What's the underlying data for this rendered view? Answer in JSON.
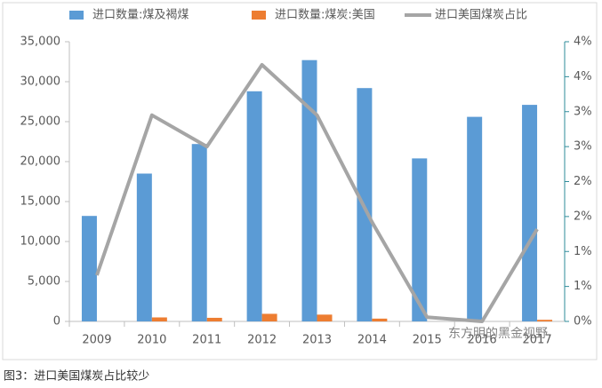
{
  "chart_data": {
    "type": "bar",
    "categories": [
      "2009",
      "2010",
      "2011",
      "2012",
      "2013",
      "2014",
      "2015",
      "2016",
      "2017"
    ],
    "series": [
      {
        "name": "进口数量:煤及褐煤",
        "color": "#5b9bd5",
        "type": "bar",
        "values": [
          13200,
          18500,
          22200,
          28800,
          32700,
          29200,
          20400,
          25600,
          27100
        ]
      },
      {
        "name": "进口数量:煤炭:美国",
        "color": "#ed7d31",
        "type": "bar",
        "values": [
          0,
          500,
          450,
          950,
          850,
          350,
          0,
          0,
          200
        ]
      },
      {
        "name": "进口美国煤炭占比",
        "color": "#a5a5a5",
        "type": "line",
        "axis": "y2",
        "values": [
          0.66,
          2.95,
          2.5,
          3.67,
          2.95,
          1.42,
          0.06,
          0.0,
          1.32
        ]
      }
    ],
    "ylim": [
      0,
      35000
    ],
    "yticks": [
      0,
      {
        "value": 5000,
        "label": "5,000"
      },
      {
        "value": 10000,
        "label": "10,000"
      },
      {
        "value": 15000,
        "label": "15,000"
      },
      {
        "value": 20000,
        "label": "20,000"
      },
      {
        "value": 25000,
        "label": "25,000"
      },
      {
        "value": 30000,
        "label": "30,000"
      },
      {
        "value": 35000,
        "label": "35,000"
      }
    ],
    "y2lim": [
      0,
      4
    ],
    "y2ticks": [
      {
        "value": 0,
        "label": "0%"
      },
      {
        "value": 0.5,
        "label": "1%"
      },
      {
        "value": 1,
        "label": "1%"
      },
      {
        "value": 1.5,
        "label": "2%"
      },
      {
        "value": 2,
        "label": "2%"
      },
      {
        "value": 2.5,
        "label": "3%"
      },
      {
        "value": 3,
        "label": "3%"
      },
      {
        "value": 3.5,
        "label": "4%"
      },
      {
        "value": 4,
        "label": "4%"
      }
    ],
    "watermark": "东方明的黑金视野",
    "caption": "图3：进口美国煤炭占比较少"
  }
}
